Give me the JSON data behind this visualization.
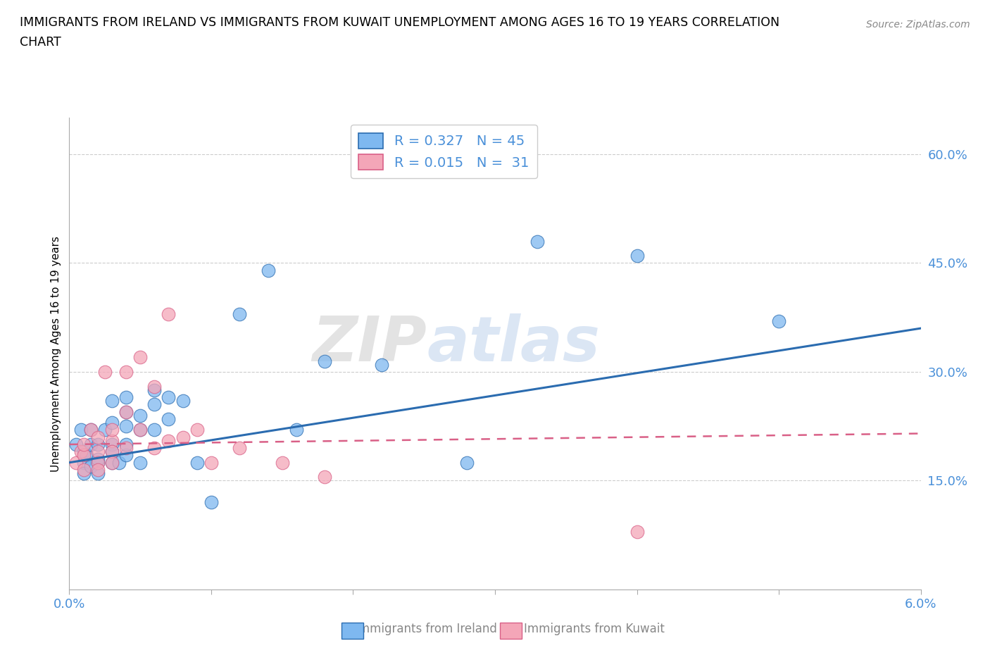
{
  "title_line1": "IMMIGRANTS FROM IRELAND VS IMMIGRANTS FROM KUWAIT UNEMPLOYMENT AMONG AGES 16 TO 19 YEARS CORRELATION",
  "title_line2": "CHART",
  "source": "Source: ZipAtlas.com",
  "ylabel": "Unemployment Among Ages 16 to 19 years",
  "xlim": [
    0.0,
    0.06
  ],
  "ylim": [
    0.0,
    0.65
  ],
  "xtick_positions": [
    0.0,
    0.01,
    0.02,
    0.03,
    0.04,
    0.05,
    0.06
  ],
  "xticklabels": [
    "0.0%",
    "",
    "",
    "",
    "",
    "",
    "6.0%"
  ],
  "ytick_positions": [
    0.15,
    0.3,
    0.45,
    0.6
  ],
  "yticklabels": [
    "15.0%",
    "30.0%",
    "45.0%",
    "60.0%"
  ],
  "ireland_R": 0.327,
  "ireland_N": 45,
  "kuwait_R": 0.015,
  "kuwait_N": 31,
  "ireland_color": "#7EB8F0",
  "kuwait_color": "#F4A6B8",
  "ireland_line_color": "#2B6CB0",
  "kuwait_line_color": "#D96087",
  "watermark_text": "ZIP",
  "watermark_text2": "atlas",
  "ireland_x": [
    0.0005,
    0.0008,
    0.001,
    0.001,
    0.001,
    0.0012,
    0.0015,
    0.0015,
    0.0015,
    0.002,
    0.002,
    0.002,
    0.002,
    0.0025,
    0.003,
    0.003,
    0.003,
    0.003,
    0.003,
    0.0035,
    0.004,
    0.004,
    0.004,
    0.004,
    0.004,
    0.005,
    0.005,
    0.005,
    0.006,
    0.006,
    0.006,
    0.007,
    0.007,
    0.008,
    0.009,
    0.01,
    0.012,
    0.014,
    0.016,
    0.018,
    0.022,
    0.028,
    0.033,
    0.04,
    0.05
  ],
  "ireland_y": [
    0.2,
    0.22,
    0.19,
    0.175,
    0.16,
    0.185,
    0.17,
    0.2,
    0.22,
    0.175,
    0.2,
    0.18,
    0.16,
    0.22,
    0.2,
    0.175,
    0.19,
    0.23,
    0.26,
    0.175,
    0.185,
    0.2,
    0.225,
    0.245,
    0.265,
    0.175,
    0.22,
    0.24,
    0.22,
    0.255,
    0.275,
    0.235,
    0.265,
    0.26,
    0.175,
    0.12,
    0.38,
    0.44,
    0.22,
    0.315,
    0.31,
    0.175,
    0.48,
    0.46,
    0.37
  ],
  "kuwait_x": [
    0.0005,
    0.0008,
    0.001,
    0.001,
    0.001,
    0.0015,
    0.002,
    0.002,
    0.002,
    0.002,
    0.0025,
    0.003,
    0.003,
    0.003,
    0.003,
    0.004,
    0.004,
    0.004,
    0.005,
    0.005,
    0.006,
    0.006,
    0.007,
    0.007,
    0.008,
    0.009,
    0.01,
    0.012,
    0.015,
    0.018,
    0.04
  ],
  "kuwait_y": [
    0.175,
    0.19,
    0.185,
    0.2,
    0.165,
    0.22,
    0.19,
    0.175,
    0.21,
    0.165,
    0.3,
    0.205,
    0.19,
    0.175,
    0.22,
    0.3,
    0.245,
    0.195,
    0.32,
    0.22,
    0.28,
    0.195,
    0.38,
    0.205,
    0.21,
    0.22,
    0.175,
    0.195,
    0.175,
    0.155,
    0.08
  ],
  "ireland_trend_x0": 0.0,
  "ireland_trend_x1": 0.06,
  "ireland_trend_y0": 0.175,
  "ireland_trend_y1": 0.36,
  "kuwait_trend_x0": 0.0,
  "kuwait_trend_x1": 0.06,
  "kuwait_trend_y0": 0.2,
  "kuwait_trend_y1": 0.215
}
